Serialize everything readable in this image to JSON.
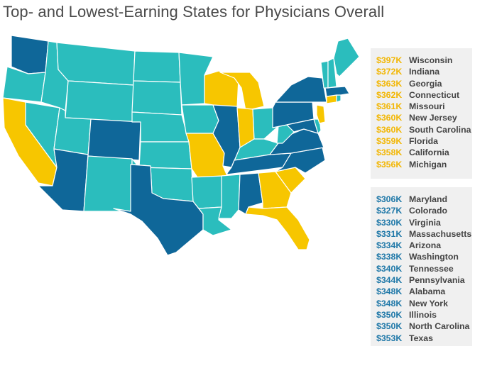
{
  "title": "Top- and Lowest-Earning States for Physicians Overall",
  "colors": {
    "top": "#f7c600",
    "lowest": "#0f6799",
    "other": "#2bbdbd",
    "border": "#ffffff",
    "top_text": "#f2b705",
    "lowest_text": "#1f78a8"
  },
  "top_earning": [
    {
      "value": "$397K",
      "state": "Wisconsin"
    },
    {
      "value": "$372K",
      "state": "Indiana"
    },
    {
      "value": "$363K",
      "state": "Georgia"
    },
    {
      "value": "$362K",
      "state": "Connecticut"
    },
    {
      "value": "$361K",
      "state": "Missouri"
    },
    {
      "value": "$360K",
      "state": "New Jersey"
    },
    {
      "value": "$360K",
      "state": "South Carolina"
    },
    {
      "value": "$359K",
      "state": "Florida"
    },
    {
      "value": "$358K",
      "state": "California"
    },
    {
      "value": "$356K",
      "state": "Michigan"
    }
  ],
  "lowest_earning": [
    {
      "value": "$306K",
      "state": "Maryland"
    },
    {
      "value": "$327K",
      "state": "Colorado"
    },
    {
      "value": "$330K",
      "state": "Virginia"
    },
    {
      "value": "$331K",
      "state": "Massachusetts"
    },
    {
      "value": "$334K",
      "state": "Arizona"
    },
    {
      "value": "$338K",
      "state": "Washington"
    },
    {
      "value": "$340K",
      "state": "Tennessee"
    },
    {
      "value": "$344K",
      "state": "Pennsylvania"
    },
    {
      "value": "$348K",
      "state": "Alabama"
    },
    {
      "value": "$348K",
      "state": "New York"
    },
    {
      "value": "$350K",
      "state": "Illinois"
    },
    {
      "value": "$350K",
      "state": "North Carolina"
    },
    {
      "value": "$353K",
      "state": "Texas"
    }
  ]
}
